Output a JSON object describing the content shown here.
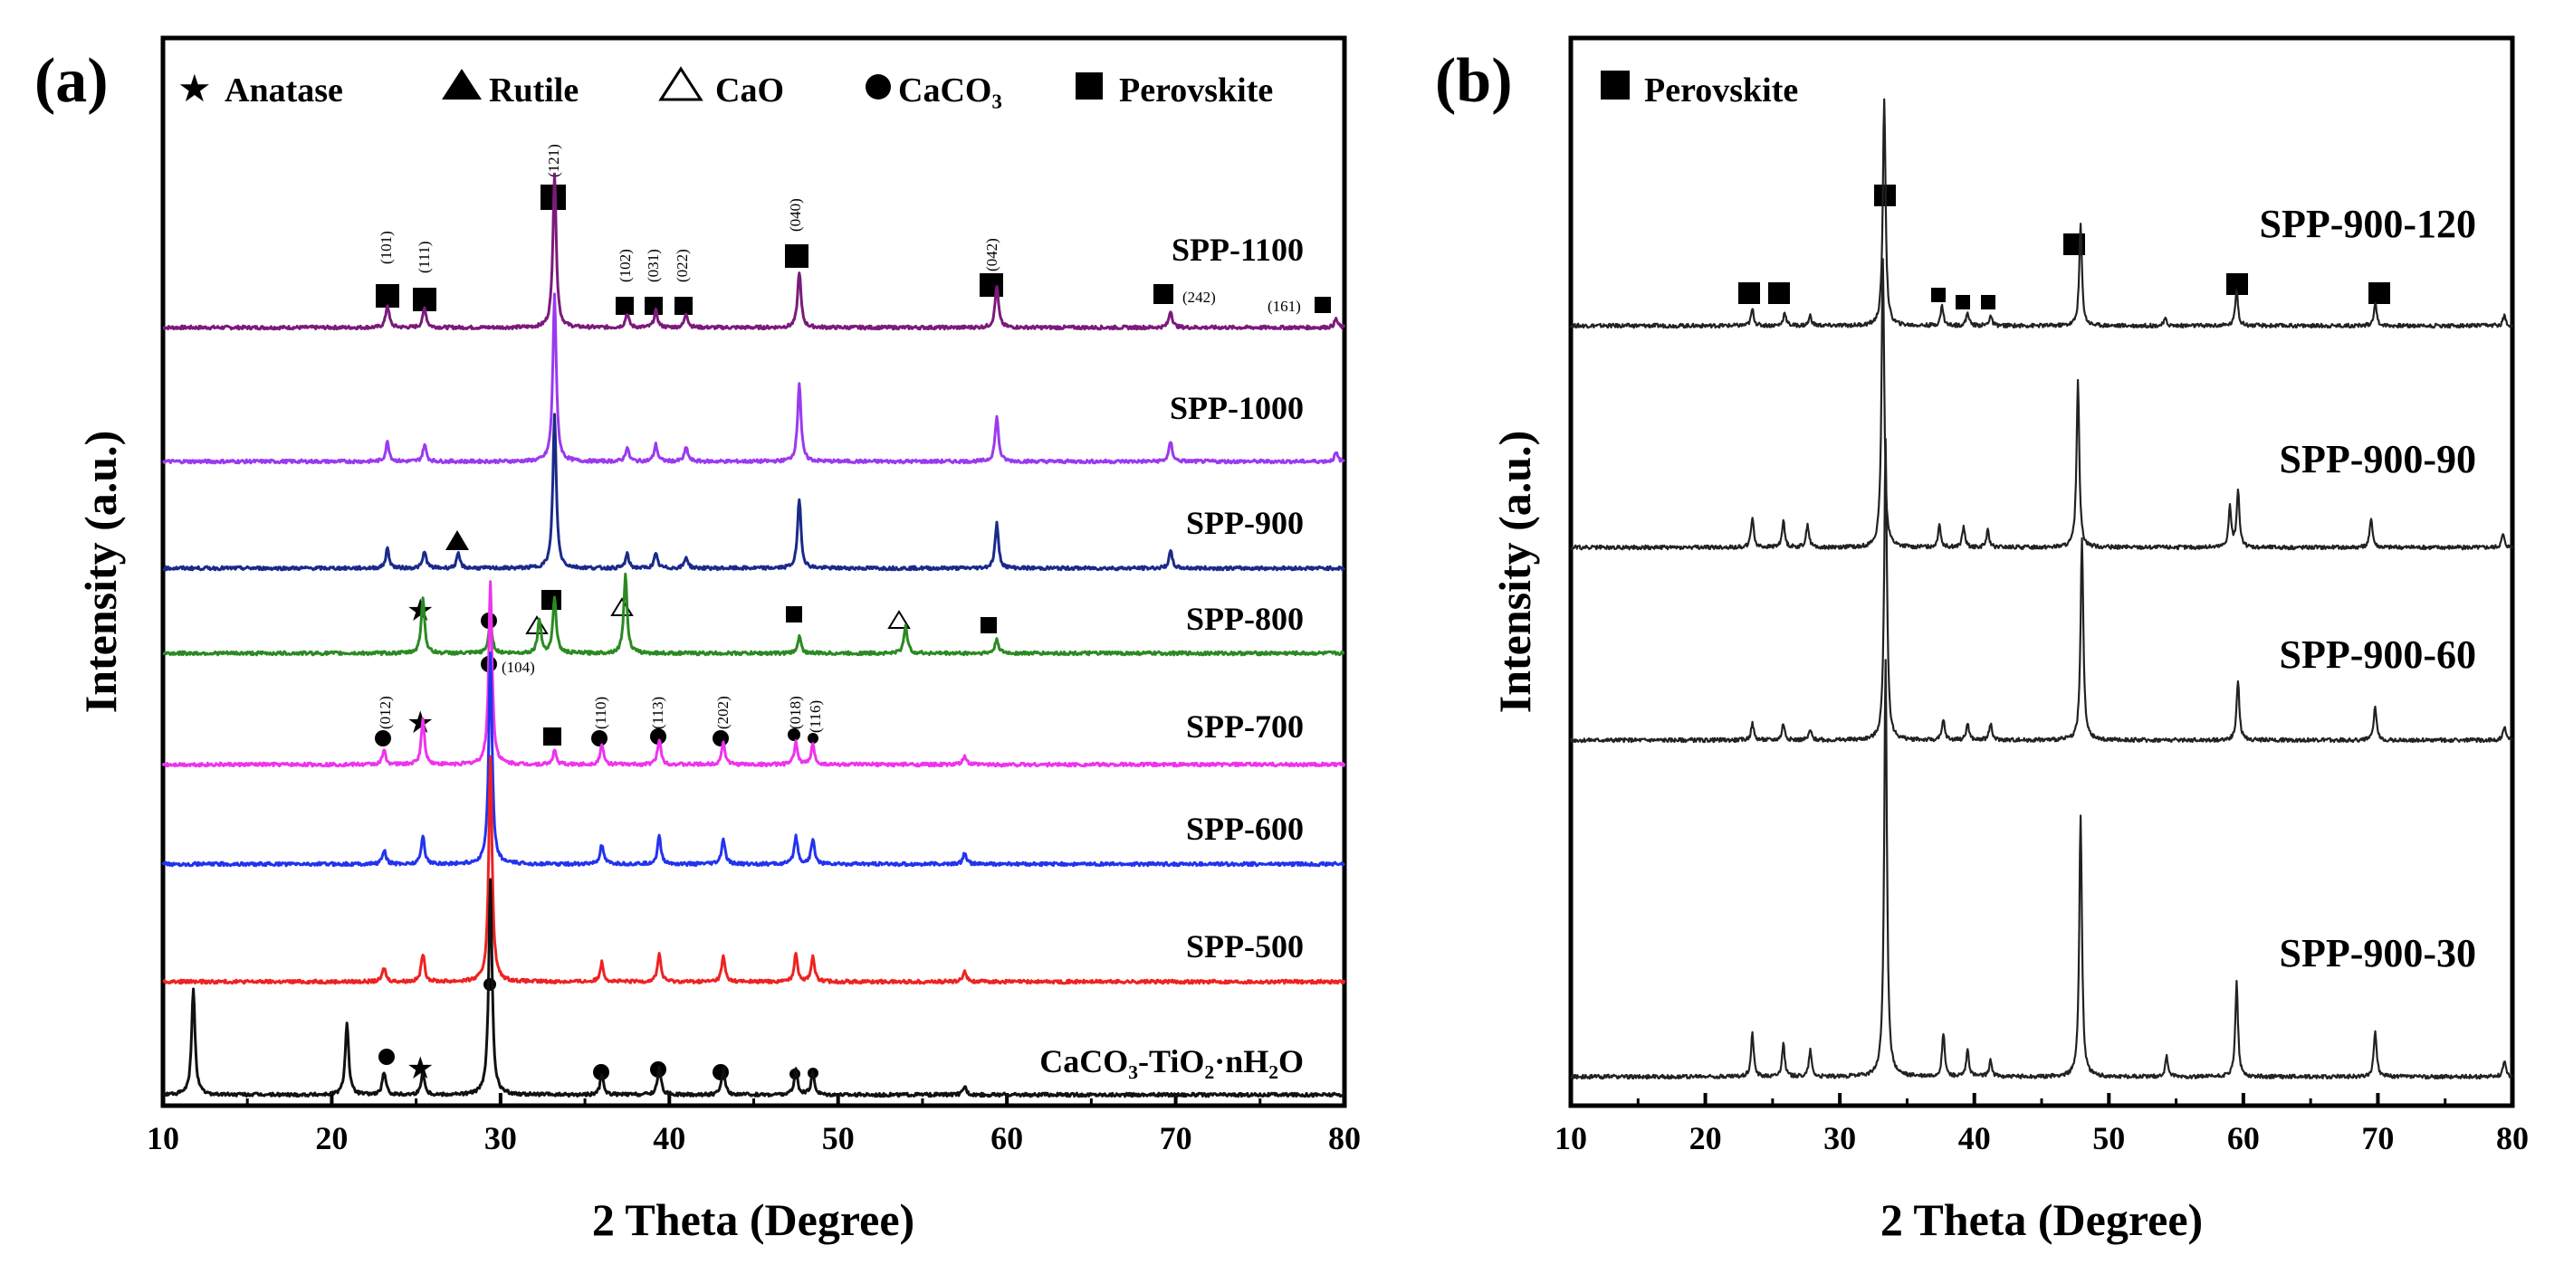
{
  "chart_data": [
    {
      "panel": "(a)",
      "type": "line",
      "xlabel": "2 Theta (Degree)",
      "ylabel": "Intensity (a.u.)",
      "xlim": [
        10,
        80
      ],
      "xticks": [
        10,
        20,
        30,
        40,
        50,
        60,
        70,
        80
      ],
      "legend": [
        {
          "marker": "star",
          "label": "Anatase"
        },
        {
          "marker": "triangle-filled",
          "label": "Rutile"
        },
        {
          "marker": "triangle-open",
          "label": "CaO"
        },
        {
          "marker": "circle",
          "label": "CaCO₃"
        },
        {
          "marker": "square",
          "label": "Perovskite"
        }
      ],
      "series": [
        {
          "name": "SPP-1100",
          "color": "#7b1a7b",
          "level": 7,
          "height": 1.0,
          "peaks": [
            [
              23.3,
              0.08
            ],
            [
              25.5,
              0.07
            ],
            [
              33.2,
              0.55
            ],
            [
              37.5,
              0.05
            ],
            [
              39.2,
              0.06
            ],
            [
              41.0,
              0.05
            ],
            [
              47.7,
              0.2
            ],
            [
              59.4,
              0.15
            ],
            [
              69.7,
              0.06
            ],
            [
              79.5,
              0.03
            ]
          ]
        },
        {
          "name": "SPP-1000",
          "color": "#9a3aef",
          "level": 6,
          "height": 1.0,
          "peaks": [
            [
              23.3,
              0.07
            ],
            [
              25.5,
              0.06
            ],
            [
              33.2,
              0.6
            ],
            [
              37.5,
              0.05
            ],
            [
              39.2,
              0.06
            ],
            [
              41.0,
              0.05
            ],
            [
              47.7,
              0.28
            ],
            [
              59.4,
              0.16
            ],
            [
              69.7,
              0.07
            ],
            [
              79.5,
              0.03
            ]
          ]
        },
        {
          "name": "SPP-900",
          "color": "#1a2a8a",
          "level": 5,
          "height": 1.0,
          "peaks": [
            [
              23.3,
              0.07
            ],
            [
              25.5,
              0.06
            ],
            [
              27.5,
              0.05
            ],
            [
              33.2,
              0.55
            ],
            [
              37.5,
              0.05
            ],
            [
              39.2,
              0.05
            ],
            [
              41.0,
              0.04
            ],
            [
              47.7,
              0.25
            ],
            [
              59.4,
              0.16
            ],
            [
              69.7,
              0.06
            ]
          ]
        },
        {
          "name": "SPP-800",
          "color": "#2a8a22",
          "level": 4,
          "height": 1.0,
          "peaks": [
            [
              25.4,
              0.2
            ],
            [
              29.4,
              0.12
            ],
            [
              32.3,
              0.12
            ],
            [
              33.2,
              0.2
            ],
            [
              37.4,
              0.28
            ],
            [
              47.7,
              0.06
            ],
            [
              54.0,
              0.1
            ],
            [
              59.4,
              0.05
            ]
          ]
        },
        {
          "name": "SPP-700",
          "color": "#ee33ee",
          "level": 3,
          "height": 1.0,
          "peaks": [
            [
              23.1,
              0.05
            ],
            [
              25.4,
              0.16
            ],
            [
              29.4,
              0.65
            ],
            [
              33.2,
              0.05
            ],
            [
              36.0,
              0.07
            ],
            [
              39.4,
              0.09
            ],
            [
              43.2,
              0.08
            ],
            [
              47.5,
              0.08
            ],
            [
              48.5,
              0.07
            ],
            [
              57.5,
              0.03
            ]
          ]
        },
        {
          "name": "SPP-600",
          "color": "#2233ee",
          "level": 2,
          "height": 1.0,
          "peaks": [
            [
              23.1,
              0.05
            ],
            [
              25.4,
              0.1
            ],
            [
              29.4,
              0.75
            ],
            [
              36.0,
              0.07
            ],
            [
              39.4,
              0.1
            ],
            [
              43.2,
              0.09
            ],
            [
              47.5,
              0.1
            ],
            [
              48.5,
              0.09
            ],
            [
              57.5,
              0.04
            ]
          ]
        },
        {
          "name": "SPP-500",
          "color": "#ee2222",
          "level": 1,
          "height": 1.0,
          "peaks": [
            [
              23.1,
              0.05
            ],
            [
              25.4,
              0.1
            ],
            [
              29.4,
              0.8
            ],
            [
              36.0,
              0.07
            ],
            [
              39.4,
              0.1
            ],
            [
              43.2,
              0.09
            ],
            [
              47.5,
              0.1
            ],
            [
              48.5,
              0.09
            ],
            [
              57.5,
              0.04
            ]
          ]
        },
        {
          "name": "CaCO₃-TiO₂·nH₂O",
          "color": "#111111",
          "level": 0,
          "height": 1.0,
          "peaks": [
            [
              11.8,
              0.38
            ],
            [
              20.9,
              0.26
            ],
            [
              23.1,
              0.08
            ],
            [
              25.4,
              0.08
            ],
            [
              29.4,
              0.77
            ],
            [
              36.0,
              0.07
            ],
            [
              39.4,
              0.1
            ],
            [
              43.2,
              0.09
            ],
            [
              47.5,
              0.09
            ],
            [
              48.5,
              0.08
            ],
            [
              57.5,
              0.03
            ]
          ]
        }
      ],
      "hkl_labels": [
        "(101)",
        "(111)",
        "(121)",
        "(102)",
        "(031)",
        "(022)",
        "(040)",
        "(042)",
        "(242)",
        "(161)",
        "(104)",
        "(012)",
        "(110)",
        "(113)",
        "(202)",
        "(018)",
        "(116)"
      ]
    },
    {
      "panel": "(b)",
      "type": "line",
      "xlabel": "2 Theta (Degree)",
      "ylabel": "Intensity (a.u.)",
      "xlim": [
        10,
        80
      ],
      "xticks": [
        10,
        20,
        30,
        40,
        50,
        60,
        70,
        80
      ],
      "legend": [
        {
          "marker": "square",
          "label": "Perovskite"
        }
      ],
      "series": [
        {
          "name": "SPP-900-120",
          "color": "#222222",
          "level": 3,
          "peaks": [
            [
              23.5,
              0.05
            ],
            [
              25.9,
              0.04
            ],
            [
              27.8,
              0.03
            ],
            [
              33.3,
              0.68
            ],
            [
              37.6,
              0.06
            ],
            [
              39.5,
              0.04
            ],
            [
              41.2,
              0.03
            ],
            [
              47.9,
              0.3
            ],
            [
              54.2,
              0.02
            ],
            [
              59.5,
              0.11
            ],
            [
              69.8,
              0.07
            ],
            [
              79.4,
              0.03
            ]
          ]
        },
        {
          "name": "SPP-900-90",
          "color": "#222222",
          "level": 2,
          "peaks": [
            [
              23.5,
              0.09
            ],
            [
              25.8,
              0.08
            ],
            [
              27.6,
              0.07
            ],
            [
              33.2,
              0.86
            ],
            [
              37.4,
              0.07
            ],
            [
              39.2,
              0.06
            ],
            [
              41.0,
              0.05
            ],
            [
              47.7,
              0.5
            ],
            [
              59.0,
              0.12
            ],
            [
              59.6,
              0.17
            ],
            [
              69.5,
              0.09
            ],
            [
              79.3,
              0.04
            ]
          ]
        },
        {
          "name": "SPP-900-60",
          "color": "#222222",
          "level": 1,
          "peaks": [
            [
              23.5,
              0.05
            ],
            [
              25.8,
              0.05
            ],
            [
              27.8,
              0.03
            ],
            [
              33.4,
              0.9
            ],
            [
              37.7,
              0.06
            ],
            [
              39.5,
              0.05
            ],
            [
              41.2,
              0.05
            ],
            [
              48.0,
              0.6
            ],
            [
              59.6,
              0.18
            ],
            [
              69.8,
              0.1
            ],
            [
              79.4,
              0.04
            ]
          ]
        },
        {
          "name": "SPP-900-30",
          "color": "#222222",
          "level": 0,
          "peaks": [
            [
              23.5,
              0.13
            ],
            [
              25.8,
              0.1
            ],
            [
              27.8,
              0.08
            ],
            [
              33.4,
              1.25
            ],
            [
              37.7,
              0.13
            ],
            [
              39.5,
              0.08
            ],
            [
              41.2,
              0.05
            ],
            [
              47.9,
              0.78
            ],
            [
              54.3,
              0.06
            ],
            [
              59.5,
              0.28
            ],
            [
              69.8,
              0.14
            ],
            [
              79.4,
              0.05
            ]
          ]
        }
      ]
    }
  ]
}
